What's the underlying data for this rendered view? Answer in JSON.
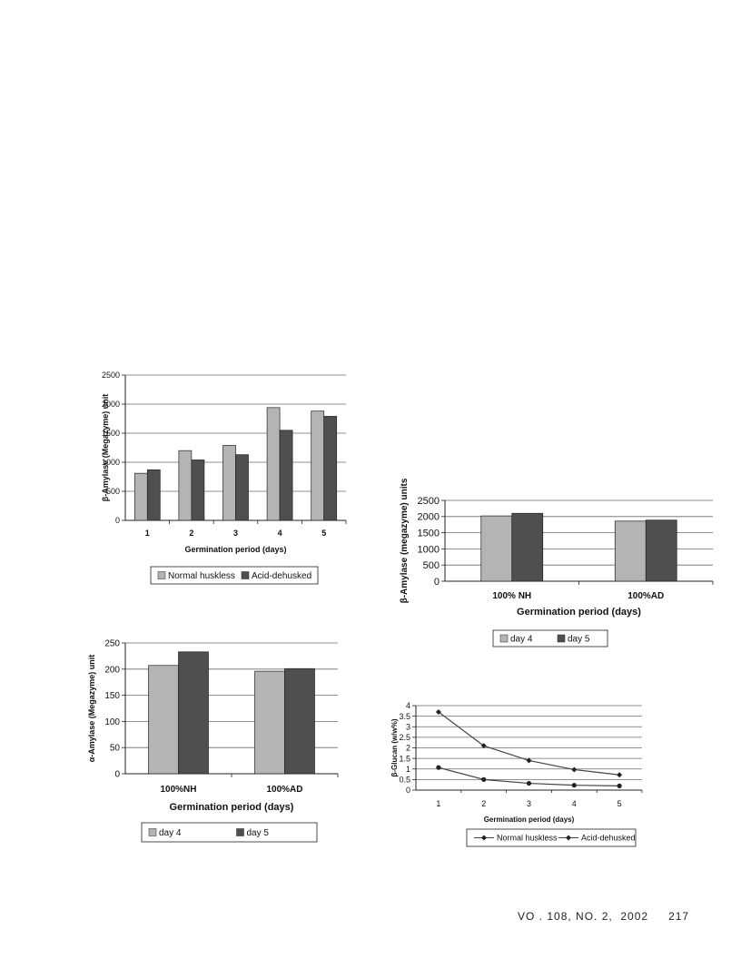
{
  "colors": {
    "series_light": "#b4b4b4",
    "series_dark": "#4f4f4f",
    "line_color": "#444444",
    "gridline": "#6b6b6b"
  },
  "footer": {
    "volume_text": "VO . 108, NO. 2,  2002",
    "page_number": "217"
  },
  "chart_data": [
    {
      "id": "beta-amylase-by-day",
      "type": "bar",
      "categories": [
        "1",
        "2",
        "3",
        "4",
        "5"
      ],
      "series": [
        {
          "name": "Normal huskless",
          "values": [
            810,
            1200,
            1290,
            1940,
            1880
          ]
        },
        {
          "name": "Acid-dehusked",
          "values": [
            870,
            1040,
            1130,
            1550,
            1790
          ]
        }
      ],
      "xlabel": "Germination period (days)",
      "ylabel": "β-Amylase (Megazyme) unit",
      "ylim": [
        0,
        2500
      ],
      "yticks": [
        "0",
        "500",
        "1000",
        "1500",
        "2000",
        "2500"
      ],
      "grid": true,
      "legend": "bottom"
    },
    {
      "id": "beta-amylase-nh-ad",
      "type": "bar",
      "categories": [
        "100% NH",
        "100%AD"
      ],
      "series": [
        {
          "name": "day 4",
          "values": [
            2020,
            1860
          ]
        },
        {
          "name": "day 5",
          "values": [
            2100,
            1890
          ]
        }
      ],
      "xlabel": "Germination period (days)",
      "ylabel": "β-Amylase (megazyme) units",
      "ylim": [
        0,
        2500
      ],
      "yticks": [
        "0",
        "500",
        "1000",
        "1500",
        "2000",
        "2500"
      ],
      "grid": true,
      "legend": "bottom"
    },
    {
      "id": "alpha-amylase-nh-ad",
      "type": "bar",
      "categories": [
        "100%NH",
        "100%AD"
      ],
      "series": [
        {
          "name": "day 4",
          "values": [
            207,
            196
          ]
        },
        {
          "name": "day 5",
          "values": [
            233,
            201
          ]
        }
      ],
      "xlabel": "Germination period (days)",
      "ylabel": "α-Amylase (Megazyme) unit",
      "ylim": [
        0,
        250
      ],
      "yticks": [
        "0",
        "50",
        "100",
        "150",
        "200",
        "250"
      ],
      "grid": true,
      "legend": "bottom"
    },
    {
      "id": "beta-glucan-by-day",
      "type": "line",
      "x": [
        "1",
        "2",
        "3",
        "4",
        "5"
      ],
      "series": [
        {
          "name": "Normal huskless",
          "values": [
            3.7,
            2.1,
            1.4,
            0.97,
            0.72
          ]
        },
        {
          "name": "Acid-dehusked",
          "values": [
            1.07,
            0.5,
            0.32,
            0.23,
            0.2
          ]
        }
      ],
      "xlabel": "Germination period (days)",
      "ylabel": "β-Glucan (w/w%)",
      "ylim": [
        0,
        4
      ],
      "yticks": [
        "0",
        "0.5",
        "1",
        "1.5",
        "2",
        "2.5",
        "3",
        "3.5",
        "4"
      ],
      "grid": true,
      "legend": "bottom"
    }
  ]
}
